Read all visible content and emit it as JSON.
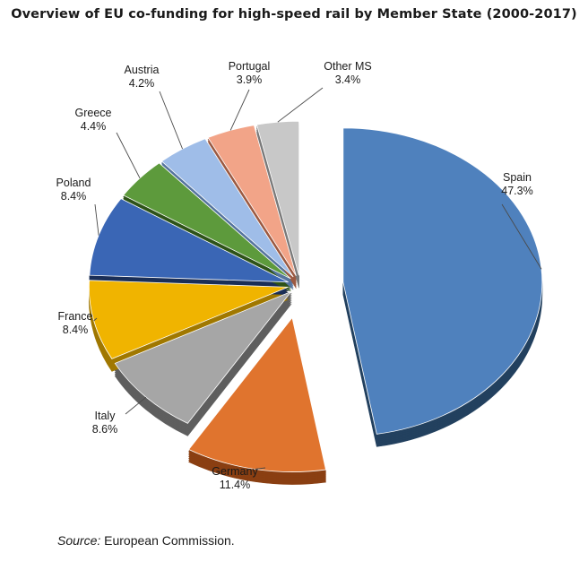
{
  "chart_data": {
    "type": "pie",
    "title": "Overview of EU co-funding for high-speed rail by Member State (2000-2017)",
    "unit": "%",
    "slices": [
      {
        "name": "Spain",
        "value": 47.3,
        "label": "47.3%",
        "color": "#4f81bd",
        "side": "#23415f",
        "explode": 1
      },
      {
        "name": "Germany",
        "value": 11.4,
        "label": "11.4%",
        "color": "#e0742e",
        "side": "#8a3f12",
        "explode": 1
      },
      {
        "name": "Italy",
        "value": 8.6,
        "label": "8.6%",
        "color": "#a6a6a6",
        "side": "#5f5f5f",
        "explode": 0
      },
      {
        "name": "France",
        "value": 8.4,
        "label": "8.4%",
        "color": "#f0b400",
        "side": "#a07800",
        "explode": 0
      },
      {
        "name": "Poland",
        "value": 8.4,
        "label": "8.4%",
        "color": "#3a66b5",
        "side": "#1b2f57",
        "explode": 0
      },
      {
        "name": "Greece",
        "value": 4.4,
        "label": "4.4%",
        "color": "#5d9a3c",
        "side": "#2e5319",
        "explode": 0
      },
      {
        "name": "Austria",
        "value": 4.2,
        "label": "4.2%",
        "color": "#9fbde8",
        "side": "#55749e",
        "explode": 0
      },
      {
        "name": "Portugal",
        "value": 3.9,
        "label": "3.9%",
        "color": "#f2a488",
        "side": "#9c5a42",
        "explode": 0
      },
      {
        "name": "Other MS",
        "value": 3.4,
        "label": "3.4%",
        "color": "#c8c8c8",
        "side": "#7a7a7a",
        "explode": 0
      }
    ],
    "legend": "none",
    "style": "exploded 3D pie with leader lines"
  },
  "source": {
    "prefix": "Source:",
    "text": "European Commission."
  }
}
